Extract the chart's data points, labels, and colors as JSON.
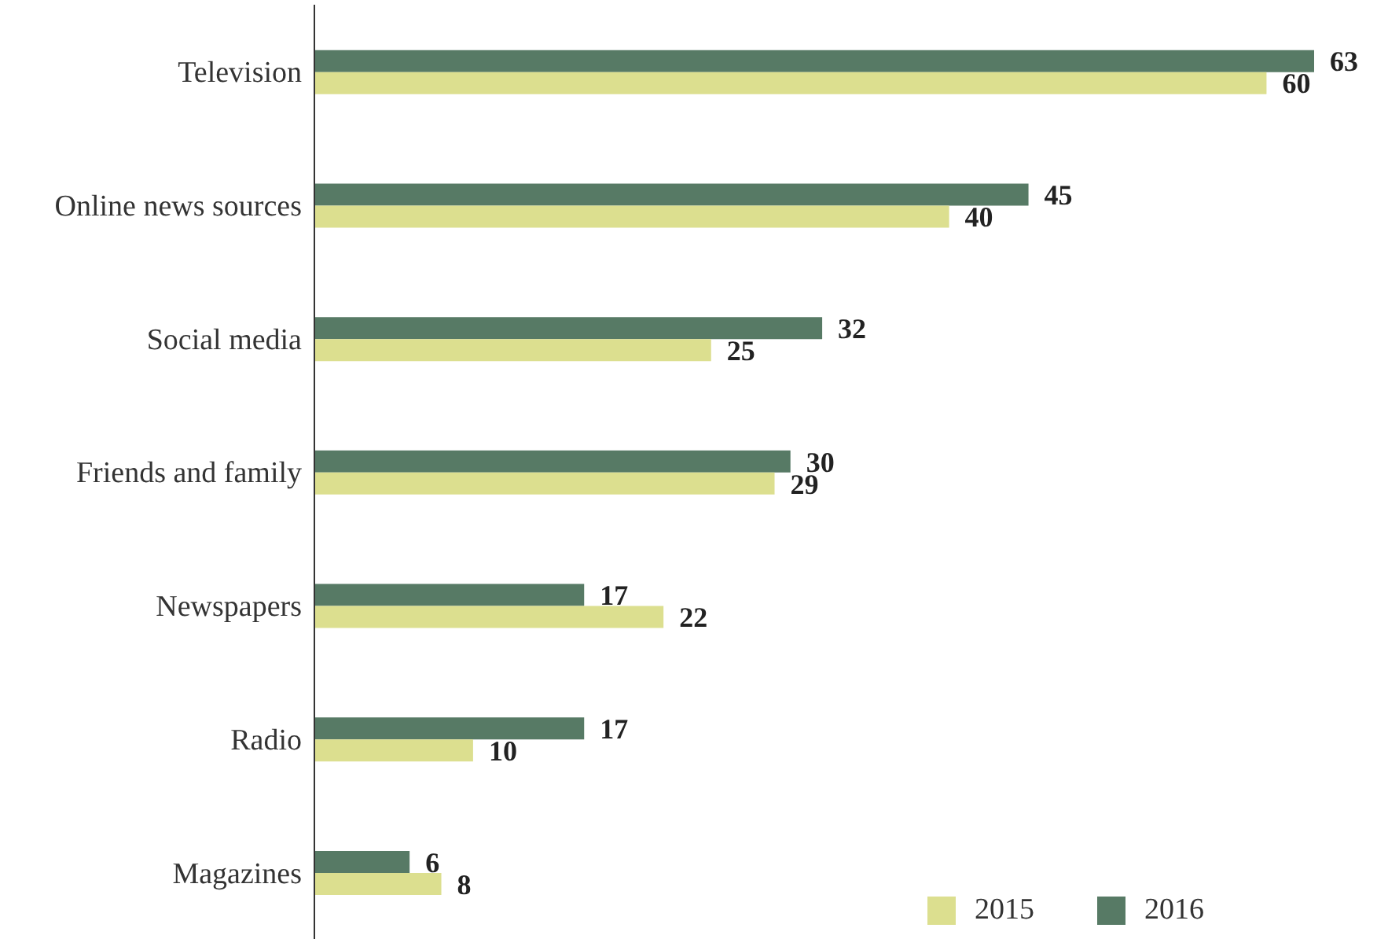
{
  "chart_data": {
    "type": "bar",
    "orientation": "horizontal",
    "categories": [
      "Television",
      "Online news sources",
      "Social media",
      "Friends and family",
      "Newspapers",
      "Radio",
      "Magazines"
    ],
    "series": [
      {
        "name": "2016",
        "color": "#577a65",
        "values": [
          63,
          45,
          32,
          30,
          17,
          17,
          6
        ]
      },
      {
        "name": "2015",
        "color": "#dcdf8f",
        "values": [
          60,
          40,
          25,
          29,
          22,
          10,
          8
        ]
      }
    ],
    "data_labels": true,
    "legend": "bottom right",
    "grid": false
  }
}
